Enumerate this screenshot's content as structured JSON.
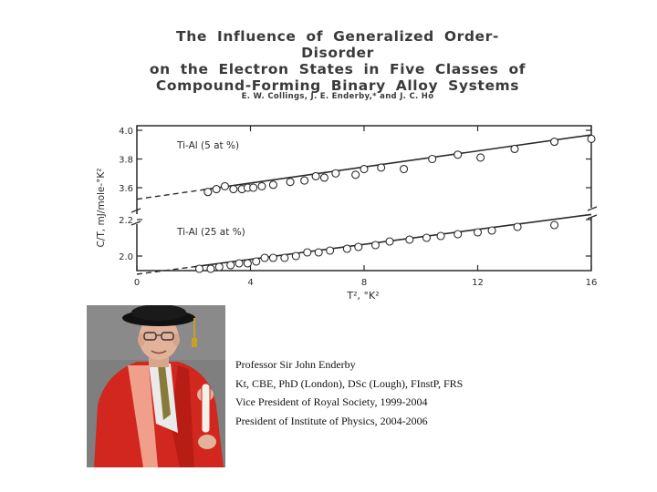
{
  "paper": {
    "title_lines": [
      "The Influence of Generalized Order-Disorder",
      "on the Electron States in Five Classes of",
      "Compound-Forming Binary Alloy Systems"
    ],
    "authors": "E. W. Collings, J. E. Enderby,* and J. C. Ho"
  },
  "chart_data": {
    "type": "scatter",
    "title": "",
    "xlabel": "T², °K²",
    "ylabel": "C/T, mJ/mole-°K²",
    "xlim": [
      0,
      16
    ],
    "x_ticks": [
      "0",
      "4",
      "8",
      "12",
      "16"
    ],
    "y_ticks_upper": [
      "4.0",
      "3.8",
      "3.6"
    ],
    "y_ticks_lower": [
      "2.2",
      "2.0"
    ],
    "grid": false,
    "broken_y_axis": true,
    "series": [
      {
        "name": "Ti-Al (5 at %)",
        "fit": {
          "intercept": 3.52,
          "slope": 0.028
        },
        "points": [
          [
            2.5,
            3.57
          ],
          [
            2.8,
            3.59
          ],
          [
            3.1,
            3.61
          ],
          [
            3.4,
            3.59
          ],
          [
            3.7,
            3.59
          ],
          [
            3.9,
            3.6
          ],
          [
            4.1,
            3.6
          ],
          [
            4.4,
            3.61
          ],
          [
            4.8,
            3.62
          ],
          [
            5.4,
            3.64
          ],
          [
            5.9,
            3.65
          ],
          [
            6.3,
            3.68
          ],
          [
            6.6,
            3.67
          ],
          [
            7.0,
            3.7
          ],
          [
            7.7,
            3.69
          ],
          [
            8.0,
            3.73
          ],
          [
            8.6,
            3.74
          ],
          [
            9.4,
            3.73
          ],
          [
            10.4,
            3.8
          ],
          [
            11.3,
            3.83
          ],
          [
            12.1,
            3.81
          ],
          [
            13.3,
            3.87
          ],
          [
            14.7,
            3.92
          ],
          [
            16.0,
            3.94
          ]
        ]
      },
      {
        "name": "Ti-Al (25 at %)",
        "fit": {
          "intercept": 1.9,
          "slope": 0.0205
        },
        "points": [
          [
            2.2,
            1.93
          ],
          [
            2.6,
            1.93
          ],
          [
            2.9,
            1.94
          ],
          [
            3.3,
            1.95
          ],
          [
            3.6,
            1.96
          ],
          [
            3.9,
            1.96
          ],
          [
            4.2,
            1.97
          ],
          [
            4.5,
            1.99
          ],
          [
            4.8,
            1.99
          ],
          [
            5.2,
            1.99
          ],
          [
            5.6,
            2.0
          ],
          [
            6.0,
            2.02
          ],
          [
            6.4,
            2.02
          ],
          [
            6.8,
            2.03
          ],
          [
            7.4,
            2.04
          ],
          [
            7.8,
            2.05
          ],
          [
            8.4,
            2.06
          ],
          [
            8.9,
            2.08
          ],
          [
            9.6,
            2.09
          ],
          [
            10.2,
            2.1
          ],
          [
            10.7,
            2.11
          ],
          [
            11.3,
            2.12
          ],
          [
            12.0,
            2.13
          ],
          [
            12.5,
            2.14
          ],
          [
            13.4,
            2.16
          ],
          [
            14.7,
            2.17
          ]
        ]
      }
    ]
  },
  "bio": {
    "name": "Professor Sir John Enderby",
    "credentials": "Kt, CBE, PhD (London), DSc (Lough), FInstP, FRS",
    "role1": "Vice President of Royal Society, 1999-2004",
    "role2": "President of Institute of Physics, 2004-2006"
  },
  "colors": {
    "robe": "#d2271e",
    "robe_trim": "#f0a08a",
    "hat": "#111111",
    "photo_bg": "#7f7f7f",
    "ink": "#2a2a2a"
  }
}
